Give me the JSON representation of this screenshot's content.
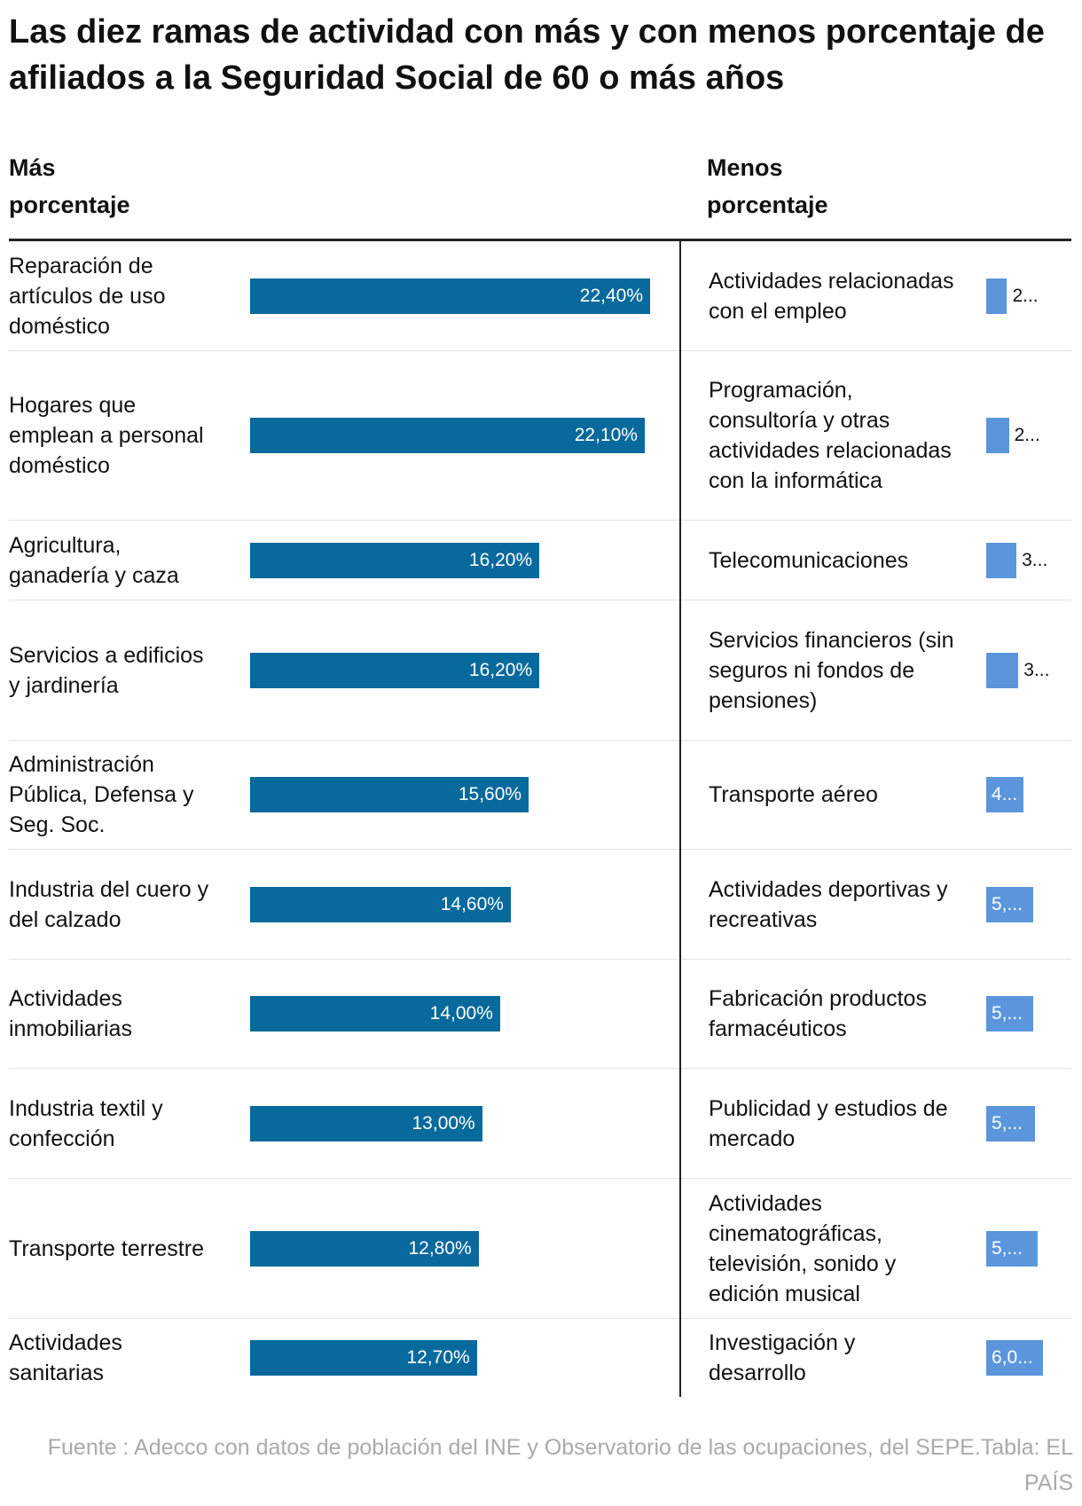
{
  "title": "Las diez ramas de actividad con más y con menos porcentaje de afiliados a la Seguridad Social de 60 o más años",
  "headers": {
    "left": "Más porcentaje",
    "right": "Menos porcentaje"
  },
  "colors": {
    "left_bar": "#07699c",
    "right_bar": "#5b96dc"
  },
  "chart_data": [
    {
      "type": "bar",
      "orientation": "horizontal",
      "title": "Más porcentaje",
      "categories": [
        "Reparación de artículos de uso doméstico",
        "Hogares que emplean a personal doméstico",
        "Agricultura, ganadería y caza",
        "Servicios a edificios y jardinería",
        "Administración Pública, Defensa y Seg. Soc.",
        "Industria del cuero y del calzado",
        "Actividades inmobiliarias",
        "Industria textil y confección",
        "Transporte terrestre",
        "Actividades sanitarias"
      ],
      "values": [
        22.4,
        22.1,
        16.2,
        16.2,
        15.6,
        14.6,
        14.0,
        13.0,
        12.8,
        12.7
      ],
      "labels": [
        "22,40%",
        "22,10%",
        "16,20%",
        "16,20%",
        "15,60%",
        "14,60%",
        "14,00%",
        "13,00%",
        "12,80%",
        "12,70%"
      ]
    },
    {
      "type": "bar",
      "orientation": "horizontal",
      "title": "Menos porcentaje",
      "categories": [
        "Actividades relacionadas con el empleo",
        "Programación, consultoría y otras actividades relacionadas con la informática",
        "Telecomunicaciones",
        "Servicios financieros (sin seguros ni fondos de pensiones)",
        "Transporte aéreo",
        "Actividades deportivas y recreativas",
        "Fabricación productos farmacéuticos",
        "Publicidad y estudios de mercado",
        "Actividades cinematográficas, televisión, sonido y edición musical",
        "Investigación y desarrollo"
      ],
      "values": [
        2.2,
        2.4,
        3.2,
        3.4,
        3.9,
        5.0,
        5.0,
        5.2,
        5.4,
        6.0
      ],
      "labels": [
        "2...",
        "2...",
        "3...",
        "3...",
        "4...",
        "5,...",
        "5,...",
        "5,...",
        "5,...",
        "6,0..."
      ]
    }
  ],
  "footer": "Fuente : Adecco con datos de población del INE y Observatorio de las ocupaciones, del SEPE.Tabla: EL PAÍS"
}
